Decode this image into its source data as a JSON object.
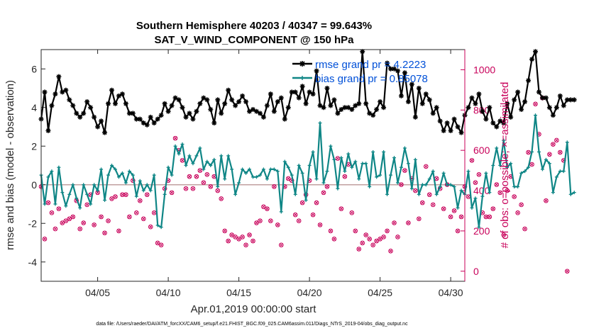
{
  "chart_data": {
    "type": "line",
    "title": "Southern Hemisphere 40203 / 40347 = 99.643%",
    "subtitle": "SAT_V_WIND_COMPONENT @ 150 hPa",
    "xlabel": "Apr.01,2019 00:00:00 start",
    "ylabel": "rmse and bias (model - observation)",
    "ylabel_right": "# of obs: o=possible; ×=assimilated",
    "footnote": "data file: /Users/raeder/DAI/ATM_forcXX/CAM6_setup/f.e21.FHIST_BGC.f09_025.CAM6assim.011/Diags_NTrS_2019-04/obs_diag_output.nc",
    "xlim": [
      1,
      31
    ],
    "ylim": [
      -5,
      7
    ],
    "ylim_right": [
      -50,
      1100
    ],
    "x_ticks": [
      5,
      10,
      15,
      20,
      25,
      30
    ],
    "x_tick_labels": [
      "04/05",
      "04/10",
      "04/15",
      "04/20",
      "04/25",
      "04/30"
    ],
    "y_ticks": [
      -4,
      -2,
      0,
      2,
      4,
      6
    ],
    "y_tick_labels": [
      "-4",
      "-2",
      "0",
      "2",
      "4",
      "6"
    ],
    "y_right_ticks": [
      0,
      200,
      400,
      600,
      800,
      1000
    ],
    "y_right_tick_labels": [
      "0",
      "200",
      "400",
      "600",
      "800",
      "1000"
    ],
    "colors": {
      "rmse": "#000000",
      "bias": "#0f8686",
      "obs": "#c8005a",
      "zero": "#c0a0a0",
      "legend_text": "#0050d8"
    },
    "legend": {
      "position": "top-right",
      "entries": [
        {
          "name": "rmse grand pr = 4.2223",
          "series": "rmse"
        },
        {
          "name": "bias grand pr = 0.85078",
          "series": "bias"
        }
      ]
    },
    "series": [
      {
        "name": "rmse",
        "axis": "left",
        "x_start": 1.0,
        "x_step": 0.25,
        "values": [
          3.4,
          4.8,
          2.8,
          4.1,
          4.7,
          5.6,
          4.8,
          4.9,
          4.4,
          4.1,
          3.7,
          3.5,
          3.7,
          4.3,
          4.0,
          3.5,
          3.0,
          3.3,
          2.7,
          4.2,
          4.9,
          4.2,
          4.6,
          4.7,
          4.2,
          3.7,
          3.7,
          3.4,
          3.4,
          3.2,
          3.1,
          3.5,
          3.2,
          3.4,
          3.6,
          4.2,
          3.8,
          4.1,
          4.5,
          4.4,
          4.0,
          3.5,
          3.7,
          3.4,
          3.8,
          4.2,
          4.5,
          4.4,
          3.9,
          3.2,
          4.4,
          3.7,
          4.2,
          4.9,
          4.4,
          4.1,
          4.3,
          4.6,
          4.3,
          3.8,
          3.9,
          3.8,
          3.7,
          3.5,
          4.1,
          4.7,
          3.8,
          4.3,
          4.5,
          3.4,
          4.0,
          4.8,
          4.8,
          4.5,
          5.1,
          4.2,
          4.8,
          4.7,
          5.9,
          4.1,
          4.0,
          5.0,
          4.1,
          4.4,
          3.7,
          3.9,
          4.0,
          4.0,
          3.9,
          4.1,
          4.2,
          6.9,
          4.2,
          3.7,
          3.6,
          3.9,
          4.3,
          4.0,
          6.3,
          6.0,
          6.0,
          5.9,
          4.6,
          5.8,
          4.3,
          5.2,
          3.5,
          5.0,
          4.2,
          4.7,
          4.4,
          3.7,
          4.0,
          3.3,
          2.8,
          3.2,
          2.8,
          3.4,
          3.0,
          2.7,
          3.6,
          4.0,
          4.5,
          4.2,
          4.7,
          3.8,
          3.4,
          4.0,
          3.2,
          3.0,
          3.3,
          3.2,
          4.2,
          3.5,
          4.4,
          4.8,
          3.9,
          4.3,
          5.4,
          6.5,
          6.9,
          4.8,
          4.5,
          4.5,
          4.0,
          3.6,
          4.0,
          4.6,
          4.1,
          4.4,
          4.4,
          4.4
        ]
      },
      {
        "name": "bias",
        "axis": "left",
        "x_start": 1.0,
        "x_step": 0.25,
        "values": [
          0.5,
          -1.0,
          0.4,
          0.7,
          -1.0,
          0.9,
          -0.4,
          -1.1,
          -0.5,
          0.0,
          -0.7,
          -1.2,
          0.0,
          -0.5,
          -1.0,
          0.0,
          -0.3,
          0.8,
          -0.8,
          0.5,
          1.0,
          0.8,
          0.4,
          0.6,
          0.1,
          0.7,
          0.5,
          -0.6,
          0.2,
          -0.3,
          0.0,
          -0.3,
          0.5,
          -2.1,
          -2.2,
          -0.5,
          0.9,
          0.5,
          2.0,
          1.6,
          2.1,
          1.0,
          1.5,
          1.1,
          1.5,
          1.9,
          0.8,
          1.2,
          1.0,
          1.3,
          -0.1,
          1.5,
          0.3,
          1.5,
          0.8,
          -0.5,
          0.1,
          0.8,
          0.6,
          0.8,
          0.4,
          0.4,
          0.5,
          0.8,
          0.3,
          0.8,
          0.8,
          0.7,
          -1.4,
          1.2,
          0.9,
          0.5,
          -0.5,
          1.0,
          0.6,
          -0.8,
          1.0,
          1.7,
          0.3,
          3.2,
          0.1,
          0.7,
          2.0,
          1.3,
          -0.2,
          1.4,
          0.7,
          1.6,
          0.9,
          1.2,
          0.3,
          1.1,
          1.1,
          -0.1,
          1.7,
          0.4,
          0.5,
          1.7,
          -0.5,
          0.5,
          1.4,
          0.1,
          0.9,
          1.9,
          1.1,
          -0.2,
          1.3,
          -0.5,
          0.0,
          0.0,
          0.3,
          0.7,
          -0.5,
          -0.1,
          0.6,
          0.0,
          0.0,
          -0.1,
          -1.2,
          -0.3,
          -0.5,
          0.7,
          -1.2,
          -0.7,
          -2.2,
          -0.6,
          0.6,
          -0.4,
          1.0,
          1.9,
          1.0,
          2.3,
          0.9,
          1.1,
          -0.1,
          -0.1,
          0.6,
          0.7,
          0.9,
          1.7,
          3.6,
          1.7,
          0.8,
          1.3,
          1.1,
          -0.4,
          0.4,
          0.7,
          0.7,
          2.2,
          -0.5,
          -0.4
        ]
      },
      {
        "name": "obs_possible",
        "axis": "right",
        "marker": "circle",
        "x_start": 1.0,
        "x_step": 0.25,
        "values": [
          420,
          160,
          340,
          290,
          210,
          310,
          240,
          250,
          260,
          270,
          350,
          210,
          240,
          330,
          380,
          230,
          390,
          270,
          190,
          250,
          360,
          370,
          200,
          380,
          380,
          270,
          450,
          290,
          350,
          260,
          380,
          220,
          290,
          140,
          130,
          410,
          450,
          390,
          660,
          600,
          550,
          410,
          470,
          410,
          470,
          500,
          440,
          480,
          420,
          470,
          400,
          360,
          200,
          150,
          180,
          170,
          160,
          170,
          130,
          180,
          150,
          240,
          250,
          320,
          310,
          250,
          420,
          230,
          130,
          420,
          460,
          450,
          280,
          250,
          340,
          380,
          450,
          280,
          340,
          230,
          390,
          420,
          200,
          160,
          560,
          310,
          470,
          530,
          290,
          200,
          110,
          140,
          180,
          160,
          130,
          150,
          160,
          170,
          200,
          100,
          240,
          170,
          430,
          500,
          240,
          460,
          400,
          260,
          340,
          520,
          380,
          330,
          460,
          410,
          310,
          430,
          270,
          300,
          200,
          270,
          420,
          370,
          550,
          440,
          480,
          290,
          270,
          270,
          310,
          430,
          390,
          180,
          400,
          470,
          370,
          290,
          330,
          210,
          590,
          530,
          830,
          680,
          860,
          350,
          580,
          630,
          650,
          590,
          550,
          0
        ]
      },
      {
        "name": "obs_assimilated",
        "axis": "right",
        "marker": "x",
        "x_start": 1.0,
        "x_step": 0.25,
        "values": [
          420,
          160,
          340,
          290,
          210,
          310,
          240,
          250,
          260,
          270,
          350,
          210,
          240,
          330,
          380,
          230,
          390,
          270,
          190,
          250,
          360,
          370,
          200,
          380,
          380,
          270,
          450,
          290,
          350,
          260,
          380,
          220,
          290,
          140,
          130,
          410,
          450,
          390,
          660,
          600,
          550,
          410,
          470,
          410,
          470,
          500,
          440,
          480,
          420,
          470,
          400,
          360,
          200,
          150,
          180,
          170,
          160,
          170,
          130,
          180,
          150,
          240,
          250,
          320,
          310,
          250,
          420,
          230,
          130,
          420,
          460,
          450,
          280,
          250,
          340,
          380,
          450,
          280,
          340,
          230,
          390,
          420,
          200,
          160,
          560,
          310,
          470,
          530,
          290,
          200,
          110,
          140,
          180,
          160,
          130,
          150,
          160,
          170,
          200,
          100,
          240,
          170,
          430,
          500,
          240,
          460,
          400,
          260,
          340,
          520,
          380,
          330,
          460,
          410,
          310,
          430,
          270,
          300,
          200,
          270,
          420,
          370,
          550,
          440,
          480,
          290,
          270,
          270,
          310,
          430,
          390,
          180,
          400,
          470,
          370,
          290,
          330,
          210,
          590,
          530,
          830,
          680,
          860,
          350,
          580,
          630,
          650,
          590,
          550,
          0
        ]
      }
    ]
  }
}
